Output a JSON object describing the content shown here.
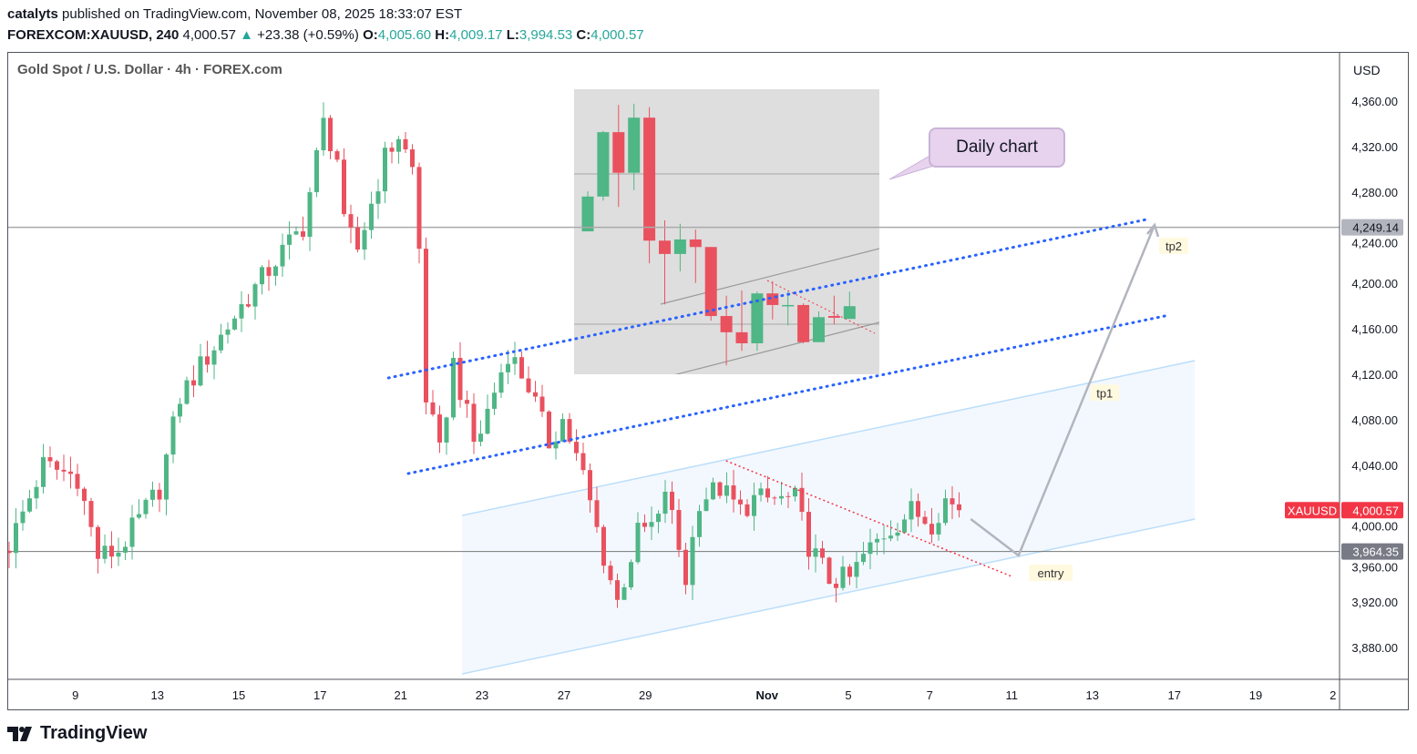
{
  "header": {
    "author": "catalyts",
    "published": "published on TradingView.com, November 08, 2025 18:33:07 EST",
    "symbol": "FOREXCOM:XAUUSD, 240",
    "last": "4,000.57",
    "change": "+23.38 (+0.59%)",
    "o_label": "O:",
    "o": "4,005.60",
    "h_label": "H:",
    "h": "4,009.17",
    "l_label": "L:",
    "l": "3,994.53",
    "c_label": "C:",
    "c": "4,000.57"
  },
  "colors": {
    "up": "#4fb685",
    "down": "#e9515f",
    "blue_line": "#2962ff",
    "channel": "#bbdefb",
    "channel_fill": "#f3f8fe"
  },
  "chart_data": {
    "type": "candlestick",
    "title": "Gold Spot / U.S. Dollar · 4h · FOREX.com",
    "currency": "USD",
    "ylim": [
      3850,
      4390
    ],
    "y_ticks": [
      "4,360.00",
      "4,320.00",
      "4,280.00",
      "4,240.00",
      "4,200.00",
      "4,160.00",
      "4,120.00",
      "4,080.00",
      "4,040.00",
      "4,000.00",
      "3,960.00",
      "3,920.00",
      "3,880.00"
    ],
    "y_tick_values": [
      4360,
      4320,
      4280,
      4240,
      4200,
      4160,
      4120,
      4080,
      4040,
      4000,
      3960,
      3920,
      3880
    ],
    "x_ticks": [
      {
        "label": "9",
        "bar": 9.7
      },
      {
        "label": "13",
        "bar": 21.7
      },
      {
        "label": "15",
        "bar": 33.6
      },
      {
        "label": "17",
        "bar": 45.5
      },
      {
        "label": "21",
        "bar": 57.3
      },
      {
        "label": "23",
        "bar": 69.2
      },
      {
        "label": "27",
        "bar": 81.2
      },
      {
        "label": "29",
        "bar": 93.1
      },
      {
        "label": "Nov",
        "bar": 110.9
      },
      {
        "label": "5",
        "bar": 122.8
      },
      {
        "label": "7",
        "bar": 134.7
      },
      {
        "label": "11",
        "bar": 146.7
      },
      {
        "label": "13",
        "bar": 158.5
      },
      {
        "label": "17",
        "bar": 170.5
      },
      {
        "label": "19",
        "bar": 182.4
      },
      {
        "label": "2",
        "bar": 193.7
      }
    ],
    "price_path": [
      [
        0,
        3970
      ],
      [
        5,
        4040
      ],
      [
        10,
        4030
      ],
      [
        13,
        3960
      ],
      [
        16,
        3965
      ],
      [
        22,
        4020
      ],
      [
        25,
        4100
      ],
      [
        34,
        4180
      ],
      [
        39,
        4220
      ],
      [
        43,
        4250
      ],
      [
        46,
        4340
      ],
      [
        48,
        4310
      ],
      [
        49,
        4250
      ],
      [
        51,
        4230
      ],
      [
        55,
        4310
      ],
      [
        57,
        4330
      ],
      [
        59,
        4300
      ],
      [
        60,
        4230
      ],
      [
        61,
        4100
      ],
      [
        63,
        4050
      ],
      [
        65,
        4130
      ],
      [
        68,
        4060
      ],
      [
        69,
        4070
      ],
      [
        73,
        4140
      ],
      [
        76,
        4110
      ],
      [
        79,
        4060
      ],
      [
        81,
        4080
      ],
      [
        84,
        4030
      ],
      [
        87,
        3960
      ],
      [
        89,
        3920
      ],
      [
        92,
        3980
      ],
      [
        95,
        3990
      ],
      [
        96,
        4020
      ],
      [
        99,
        3940
      ],
      [
        101,
        4010
      ],
      [
        104,
        4020
      ],
      [
        107,
        4000
      ],
      [
        109,
        4010
      ],
      [
        115,
        4010
      ],
      [
        117,
        3970
      ],
      [
        120,
        3940
      ],
      [
        123,
        3940
      ],
      [
        125,
        3960
      ],
      [
        128,
        3980
      ],
      [
        132,
        4000
      ],
      [
        135,
        3990
      ],
      [
        137,
        4010
      ],
      [
        139,
        4000.57
      ]
    ],
    "bar_count": 140,
    "price_labels": {
      "resistance": {
        "value": 4249.14,
        "text": "4,249.14"
      },
      "support": {
        "value": 3964.35,
        "text": "3,964.35"
      },
      "last": {
        "value": 4000.57,
        "text": "4,000.57",
        "name": "XAUUSD"
      }
    },
    "drawings": {
      "blue_upper": [
        [
          55.5,
          4116.8
        ],
        [
          166.4,
          4256
        ]
      ],
      "blue_lower": [
        [
          58.4,
          4032.8
        ],
        [
          169.1,
          4171.2
        ]
      ],
      "channel_upper": [
        [
          66.3,
          3996
        ],
        [
          173.5,
          4132
        ]
      ],
      "channel_lower": [
        [
          66.3,
          3856.8
        ],
        [
          173.5,
          3992.8
        ]
      ],
      "red_trendline": [
        [
          104.9,
          4044
        ],
        [
          146.7,
          3942.4
        ]
      ],
      "projection": [
        [
          140.7,
          3992.8
        ],
        [
          147.7,
          3960.8
        ],
        [
          167.6,
          4251.2
        ]
      ],
      "labels": [
        {
          "text": "tp2",
          "bar": 170.4,
          "price": 4232
        },
        {
          "text": "tp1",
          "bar": 160.3,
          "price": 4103
        },
        {
          "text": "entry",
          "bar": 152.4,
          "price": 3944.8
        }
      ]
    },
    "inset": {
      "caption": "Daily chart",
      "candles": [
        [
          4140,
          4209,
          4140,
          4200
        ],
        [
          4200,
          4313,
          4193,
          4311
        ],
        [
          4311,
          4358,
          4182,
          4241
        ],
        [
          4241,
          4360,
          4211,
          4336
        ],
        [
          4336,
          4354,
          4085,
          4124
        ],
        [
          4124,
          4159,
          4014,
          4101
        ],
        [
          4101,
          4153,
          4071,
          4126
        ],
        [
          4126,
          4143,
          4051,
          4113
        ],
        [
          4113,
          4113,
          3986,
          3994
        ],
        [
          3994,
          4029,
          3909,
          3966
        ],
        [
          3966,
          4038,
          3934,
          3947
        ],
        [
          3947,
          4036,
          3934,
          4033
        ],
        [
          4033,
          4054,
          3988,
          4013
        ],
        [
          4013,
          4036,
          3978,
          4013
        ],
        [
          4013,
          4016,
          3947,
          3949
        ],
        [
          3949,
          4002,
          3949,
          3992
        ],
        [
          3994,
          4029,
          3980,
          3991
        ],
        [
          3989,
          4036,
          3989,
          4011
        ]
      ]
    }
  },
  "footer": {
    "brand": "TradingView"
  }
}
